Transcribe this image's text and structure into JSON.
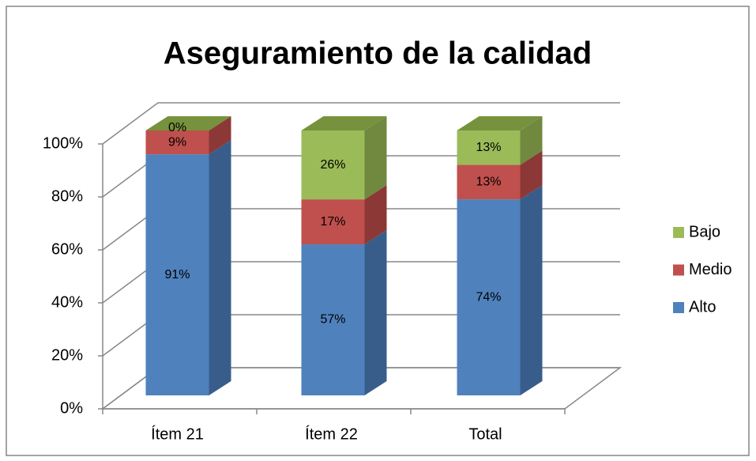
{
  "chart_data": {
    "type": "bar",
    "stacked": true,
    "title": "Aseguramiento de la calidad",
    "categories": [
      "Ítem 21",
      "Ítem 22",
      "Total"
    ],
    "series": [
      {
        "name": "Alto",
        "color": "#4f81bd",
        "side_color": "#385d8a",
        "values": [
          91,
          57,
          74
        ],
        "value_labels": [
          "91%",
          "57%",
          "74%"
        ]
      },
      {
        "name": "Medio",
        "color": "#c0504d",
        "side_color": "#8c3836",
        "values": [
          9,
          17,
          13
        ],
        "value_labels": [
          "9%",
          "17%",
          "13%"
        ]
      },
      {
        "name": "Bajo",
        "color": "#9bbb59",
        "side_color": "#71893f",
        "values": [
          0,
          26,
          13
        ],
        "value_labels": [
          "0%",
          "26%",
          "13%"
        ]
      }
    ],
    "ylim": [
      0,
      100
    ],
    "yticks": [
      {
        "value": 0,
        "label": "0%"
      },
      {
        "value": 20,
        "label": "20%"
      },
      {
        "value": 40,
        "label": "40%"
      },
      {
        "value": 60,
        "label": "60%"
      },
      {
        "value": 80,
        "label": "80%"
      },
      {
        "value": 100,
        "label": "100%"
      }
    ],
    "grid": true,
    "legend": "right"
  }
}
